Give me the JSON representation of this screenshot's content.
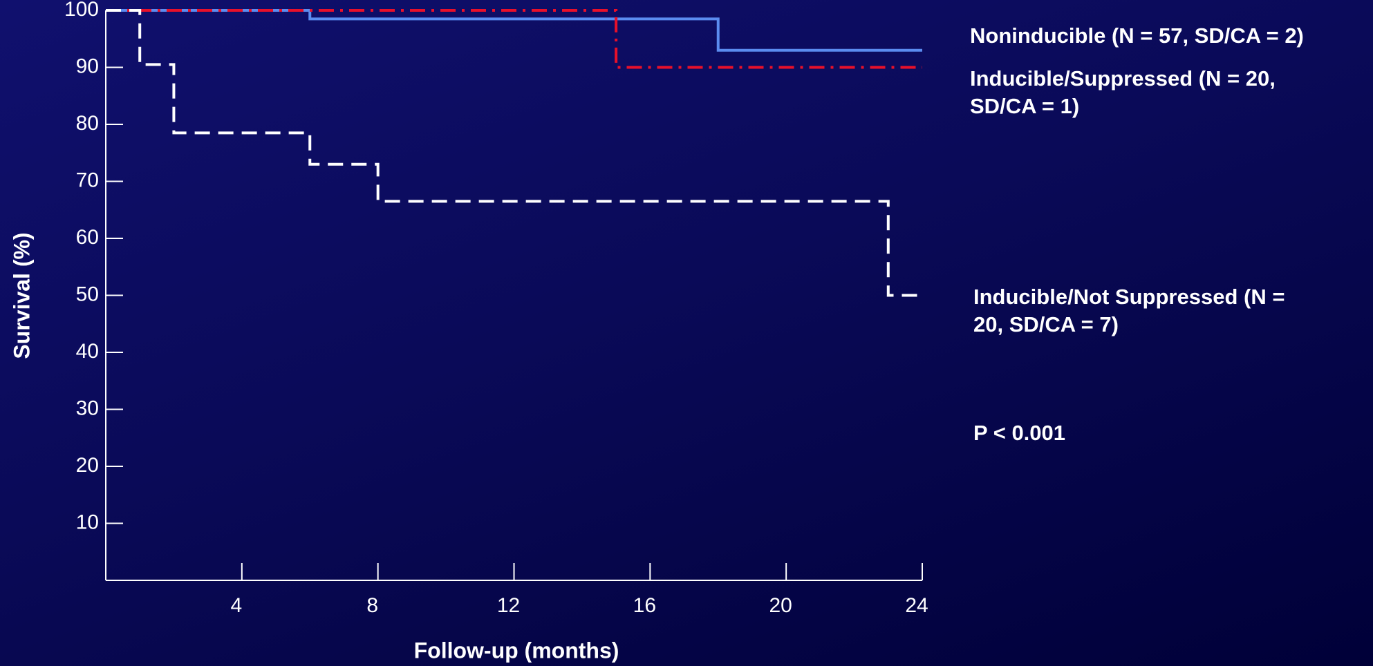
{
  "chart_data": {
    "type": "step",
    "xlabel": "Follow-up (months)",
    "ylabel": "Survival (%)",
    "xlim": [
      0,
      24
    ],
    "ylim": [
      0,
      100
    ],
    "xticks": [
      4,
      8,
      12,
      16,
      20,
      24
    ],
    "yticks": [
      10,
      20,
      30,
      40,
      50,
      60,
      70,
      80,
      90,
      100
    ],
    "legend": "right",
    "series": [
      {
        "name": "Noninducible (N = 57, SD/CA = 2)",
        "color": "#5b8cf0",
        "dash": "solid",
        "x": [
          0,
          6,
          18,
          24
        ],
        "values": [
          100,
          98.5,
          93,
          93
        ]
      },
      {
        "name": "Inducible/Suppressed (N = 20, SD/CA = 1)",
        "color": "#e8102a",
        "dash": "dashdot",
        "x": [
          0,
          15,
          24
        ],
        "values": [
          100,
          90,
          90
        ]
      },
      {
        "name": "Inducible/Not Suppressed (N = 20, SD/CA = 7)",
        "color": "#ffffff",
        "dash": "dashed",
        "x": [
          0,
          1,
          2,
          6,
          8,
          23,
          24
        ],
        "values": [
          100,
          90.5,
          78.5,
          73,
          66.5,
          50,
          50
        ]
      }
    ],
    "annotation": "P < 0.001"
  }
}
